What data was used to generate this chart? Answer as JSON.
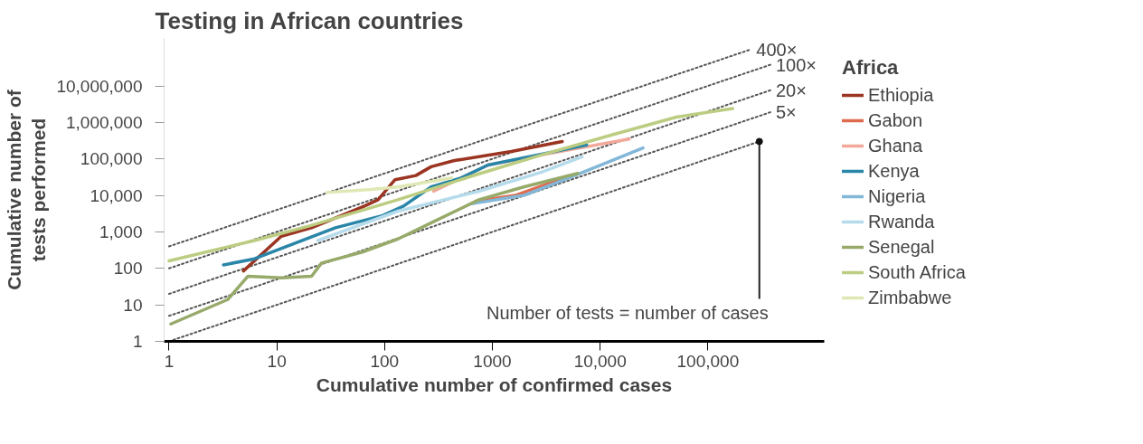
{
  "chart_data": {
    "type": "line",
    "title": "Testing in African countries",
    "xlabel": "Cumulative number of confirmed cases",
    "ylabel": "Cumulative number of\ntests performed",
    "legend_title": "Africa",
    "legend": "right",
    "log": "xy",
    "grid": false,
    "line_style": "solid",
    "xlim": [
      0.9,
      1200000
    ],
    "ylim": [
      1,
      200000000
    ],
    "xticks": [
      1,
      10,
      100,
      1000,
      {
        "value": 10000,
        "label": "10,000"
      },
      {
        "value": 100000,
        "label": "100,000"
      }
    ],
    "yticks": [
      1,
      10,
      100,
      {
        "value": 1000,
        "label": "1,000"
      },
      {
        "value": 10000,
        "label": "10,000"
      },
      {
        "value": 100000,
        "label": "100,000"
      },
      {
        "value": 1000000,
        "label": "1,000,000"
      },
      {
        "value": 10000000,
        "label": "10,000,000"
      }
    ],
    "series": [
      {
        "type": "line",
        "line_style": "dotted",
        "color": "#555555",
        "x": [
          1,
          250000
        ],
        "values": [
          400,
          100000000
        ]
      },
      {
        "type": "line",
        "line_style": "dotted",
        "color": "#555555",
        "x": [
          1,
          380000
        ],
        "values": [
          100,
          38000000
        ]
      },
      {
        "type": "line",
        "line_style": "dotted",
        "color": "#555555",
        "x": [
          1,
          380000
        ],
        "values": [
          20,
          7600000
        ]
      },
      {
        "type": "line",
        "line_style": "dotted",
        "color": "#555555",
        "x": [
          1,
          380000
        ],
        "values": [
          5,
          1900000
        ]
      },
      {
        "type": "line",
        "line_style": "dotted",
        "color": "#555555",
        "x": [
          1,
          300000
        ],
        "values": [
          1,
          300000
        ]
      },
      {
        "name": "Ethiopia",
        "color": "#9b3522",
        "x": [
          4.9,
          11,
          21,
          65,
          87,
          125,
          195,
          270,
          445,
          1500,
          4450
        ],
        "values": [
          85,
          760,
          1300,
          5100,
          7600,
          27000,
          35000,
          61000,
          90000,
          160000,
          300000
        ]
      },
      {
        "name": "Gabon",
        "color": "#e06a4e",
        "x": [
          700,
          1630,
          4600
        ],
        "values": [
          6800,
          10000,
          30000
        ]
      },
      {
        "name": "Ghana",
        "color": "#f2a99a",
        "x": [
          285,
          910,
          2900,
          18600
        ],
        "values": [
          13000,
          68000,
          130000,
          350000
        ]
      },
      {
        "name": "Kenya",
        "color": "#2a86a8",
        "x": [
          3.2,
          6.2,
          35,
          96,
          150,
          270,
          510,
          910,
          7500
        ],
        "values": [
          124,
          183,
          1300,
          2800,
          5100,
          17000,
          30000,
          68000,
          240000
        ]
      },
      {
        "name": "Nigeria",
        "color": "#82b7d8",
        "x": [
          620,
          1950,
          5100,
          25000
        ],
        "values": [
          5800,
          10000,
          30000,
          200000
        ]
      },
      {
        "name": "Rwanda",
        "color": "#b6dcec",
        "x": [
          24,
          133,
          750,
          2900,
          6800
        ],
        "values": [
          580,
          3700,
          13000,
          44000,
          115000
        ]
      },
      {
        "name": "Senegal",
        "color": "#98aa6a",
        "x": [
          1.04,
          3.5,
          5.4,
          11,
          21,
          26,
          62,
          133,
          285,
          750,
          1950,
          6200
        ],
        "values": [
          3,
          14,
          61,
          55,
          61,
          140,
          280,
          640,
          1900,
          7600,
          17000,
          40000
        ]
      },
      {
        "name": "South Africa",
        "color": "#bccd82",
        "x": [
          1,
          6.2,
          20,
          133,
          750,
          2900,
          13000,
          51000,
          170000
        ],
        "values": [
          160,
          580,
          1450,
          7600,
          39000,
          130000,
          460000,
          1400000,
          2400000
        ]
      },
      {
        "name": "Zimbabwe",
        "color": "#dfe8b4",
        "x": [
          29,
          75,
          133,
          420
        ],
        "values": [
          12000,
          14500,
          17000,
          30000
        ]
      }
    ],
    "annotations": [
      {
        "text": "400×",
        "x": 250000,
        "y": 100000000
      },
      {
        "text": "100×",
        "x": 380000,
        "y": 38000000
      },
      {
        "text": "20×",
        "x": 380000,
        "y": 7600000
      },
      {
        "text": "5×",
        "x": 380000,
        "y": 1900000
      },
      {
        "text": "Number of tests = number of cases",
        "x": 300000,
        "y": 300000
      }
    ]
  }
}
